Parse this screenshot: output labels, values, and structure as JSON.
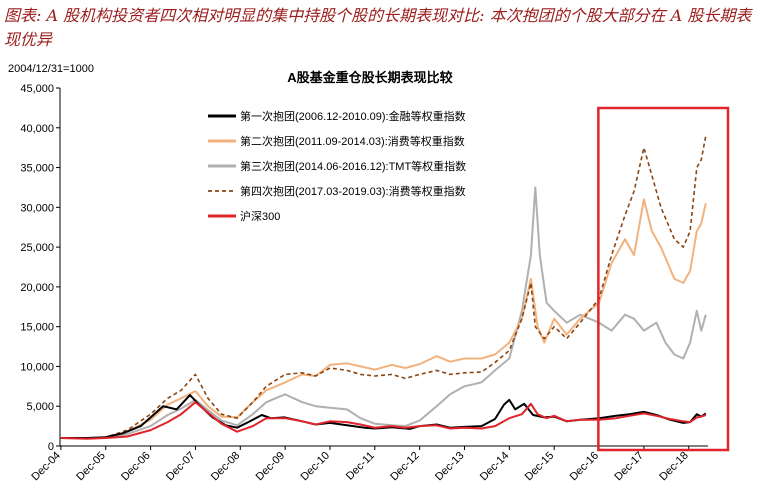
{
  "caption": "图表: A 股机构投资者四次相对明显的集中持股个股的长期表现对比: 本次抱团的个股大部分在 A 股长期表现优异",
  "chart_data": {
    "type": "line",
    "title": "A股基金重仓股长期表现比较",
    "ylabel": "2004/12/31=1000",
    "ylim": [
      0,
      45000
    ],
    "yticks": [
      "0",
      "5,000",
      "10,000",
      "15,000",
      "20,000",
      "25,000",
      "30,000",
      "35,000",
      "40,000",
      "45,000"
    ],
    "xticks": [
      "Dec-04",
      "Dec-05",
      "Dec-06",
      "Dec-07",
      "Dec-08",
      "Dec-09",
      "Dec-10",
      "Dec-11",
      "Dec-12",
      "Dec-13",
      "Dec-14",
      "Dec-15",
      "Dec-16",
      "Dec-17",
      "Dec-18"
    ],
    "xlim": [
      2004.9,
      2019.35
    ],
    "highlight_range_x": [
      2016.95,
      2019.35
    ],
    "legend_position": "top-left",
    "series": [
      {
        "name": "第一次抱团(2006.12-2010.09):金融等权重指数",
        "color": "#000000",
        "dash": false,
        "points": [
          [
            2004.92,
            1000
          ],
          [
            2005.5,
            1000
          ],
          [
            2005.92,
            1100
          ],
          [
            2006.3,
            1600
          ],
          [
            2006.7,
            2500
          ],
          [
            2006.92,
            3600
          ],
          [
            2007.2,
            5000
          ],
          [
            2007.5,
            4600
          ],
          [
            2007.8,
            6400
          ],
          [
            2008.0,
            5200
          ],
          [
            2008.3,
            3600
          ],
          [
            2008.6,
            2600
          ],
          [
            2008.85,
            2300
          ],
          [
            2009.1,
            3000
          ],
          [
            2009.4,
            3900
          ],
          [
            2009.6,
            3500
          ],
          [
            2009.9,
            3600
          ],
          [
            2010.3,
            3100
          ],
          [
            2010.6,
            2700
          ],
          [
            2010.92,
            2900
          ],
          [
            2011.3,
            2600
          ],
          [
            2011.7,
            2300
          ],
          [
            2011.92,
            2200
          ],
          [
            2012.3,
            2350
          ],
          [
            2012.7,
            2150
          ],
          [
            2012.92,
            2500
          ],
          [
            2013.3,
            2700
          ],
          [
            2013.6,
            2300
          ],
          [
            2013.92,
            2400
          ],
          [
            2014.3,
            2500
          ],
          [
            2014.6,
            3400
          ],
          [
            2014.8,
            5200
          ],
          [
            2014.92,
            5800
          ],
          [
            2015.05,
            4600
          ],
          [
            2015.25,
            5300
          ],
          [
            2015.45,
            3900
          ],
          [
            2015.7,
            3600
          ],
          [
            2015.92,
            3700
          ],
          [
            2016.2,
            3100
          ],
          [
            2016.5,
            3300
          ],
          [
            2016.92,
            3500
          ],
          [
            2017.3,
            3800
          ],
          [
            2017.6,
            4000
          ],
          [
            2017.92,
            4300
          ],
          [
            2018.2,
            3900
          ],
          [
            2018.5,
            3300
          ],
          [
            2018.8,
            2900
          ],
          [
            2018.95,
            3000
          ],
          [
            2019.1,
            4000
          ],
          [
            2019.2,
            3700
          ],
          [
            2019.3,
            4100
          ]
        ]
      },
      {
        "name": "第二次抱团(2011.09-2014.03):消费等权重指数",
        "color": "#f2b27e",
        "dash": false,
        "points": [
          [
            2004.92,
            1000
          ],
          [
            2005.5,
            950
          ],
          [
            2005.92,
            1100
          ],
          [
            2006.4,
            1800
          ],
          [
            2006.92,
            3300
          ],
          [
            2007.3,
            5200
          ],
          [
            2007.6,
            6000
          ],
          [
            2007.92,
            6900
          ],
          [
            2008.2,
            5000
          ],
          [
            2008.5,
            3700
          ],
          [
            2008.85,
            3600
          ],
          [
            2009.2,
            5500
          ],
          [
            2009.5,
            7000
          ],
          [
            2009.92,
            8000
          ],
          [
            2010.3,
            9000
          ],
          [
            2010.6,
            8800
          ],
          [
            2010.92,
            10200
          ],
          [
            2011.3,
            10400
          ],
          [
            2011.6,
            10000
          ],
          [
            2011.92,
            9600
          ],
          [
            2012.3,
            10200
          ],
          [
            2012.6,
            9800
          ],
          [
            2012.92,
            10300
          ],
          [
            2013.3,
            11300
          ],
          [
            2013.6,
            10600
          ],
          [
            2013.92,
            11000
          ],
          [
            2014.3,
            11000
          ],
          [
            2014.6,
            11500
          ],
          [
            2014.92,
            13000
          ],
          [
            2015.2,
            16000
          ],
          [
            2015.4,
            21000
          ],
          [
            2015.55,
            15000
          ],
          [
            2015.7,
            13000
          ],
          [
            2015.92,
            16000
          ],
          [
            2016.2,
            14000
          ],
          [
            2016.5,
            16000
          ],
          [
            2016.92,
            18000
          ],
          [
            2017.2,
            23000
          ],
          [
            2017.5,
            26000
          ],
          [
            2017.7,
            24000
          ],
          [
            2017.92,
            31000
          ],
          [
            2018.1,
            27000
          ],
          [
            2018.3,
            25000
          ],
          [
            2018.6,
            21000
          ],
          [
            2018.8,
            20500
          ],
          [
            2018.95,
            22000
          ],
          [
            2019.1,
            27000
          ],
          [
            2019.2,
            28000
          ],
          [
            2019.3,
            30500
          ]
        ]
      },
      {
        "name": "第三次抱团(2014.06-2016.12):TMT等权重指数",
        "color": "#b0b0b0",
        "dash": false,
        "points": [
          [
            2004.92,
            1000
          ],
          [
            2005.5,
            950
          ],
          [
            2005.92,
            1050
          ],
          [
            2006.4,
            1500
          ],
          [
            2006.92,
            2500
          ],
          [
            2007.3,
            3900
          ],
          [
            2007.6,
            4700
          ],
          [
            2007.92,
            5800
          ],
          [
            2008.2,
            4500
          ],
          [
            2008.5,
            3200
          ],
          [
            2008.85,
            2600
          ],
          [
            2009.2,
            4000
          ],
          [
            2009.5,
            5500
          ],
          [
            2009.92,
            6500
          ],
          [
            2010.3,
            5500
          ],
          [
            2010.6,
            5000
          ],
          [
            2010.92,
            4800
          ],
          [
            2011.3,
            4600
          ],
          [
            2011.6,
            3500
          ],
          [
            2011.92,
            2800
          ],
          [
            2012.3,
            2600
          ],
          [
            2012.6,
            2500
          ],
          [
            2012.92,
            3200
          ],
          [
            2013.3,
            5000
          ],
          [
            2013.6,
            6500
          ],
          [
            2013.92,
            7500
          ],
          [
            2014.3,
            8000
          ],
          [
            2014.6,
            9500
          ],
          [
            2014.92,
            11000
          ],
          [
            2015.2,
            17000
          ],
          [
            2015.4,
            24000
          ],
          [
            2015.5,
            32500
          ],
          [
            2015.6,
            24000
          ],
          [
            2015.75,
            18000
          ],
          [
            2015.92,
            17000
          ],
          [
            2016.2,
            15500
          ],
          [
            2016.5,
            16500
          ],
          [
            2016.92,
            15500
          ],
          [
            2017.2,
            14500
          ],
          [
            2017.5,
            16500
          ],
          [
            2017.7,
            16000
          ],
          [
            2017.92,
            14500
          ],
          [
            2018.2,
            15500
          ],
          [
            2018.4,
            13000
          ],
          [
            2018.6,
            11500
          ],
          [
            2018.8,
            11000
          ],
          [
            2018.95,
            13000
          ],
          [
            2019.1,
            17000
          ],
          [
            2019.2,
            14500
          ],
          [
            2019.3,
            16500
          ]
        ]
      },
      {
        "name": "第四次抱团(2017.03-2019.03):消费等权重指数",
        "color": "#8b4513",
        "dash": true,
        "points": [
          [
            2004.92,
            1000
          ],
          [
            2005.5,
            950
          ],
          [
            2005.92,
            1100
          ],
          [
            2006.4,
            2000
          ],
          [
            2006.92,
            4000
          ],
          [
            2007.3,
            6000
          ],
          [
            2007.6,
            7000
          ],
          [
            2007.92,
            9000
          ],
          [
            2008.2,
            6000
          ],
          [
            2008.5,
            4000
          ],
          [
            2008.85,
            3500
          ],
          [
            2009.2,
            5500
          ],
          [
            2009.5,
            7500
          ],
          [
            2009.92,
            9000
          ],
          [
            2010.3,
            9200
          ],
          [
            2010.6,
            8800
          ],
          [
            2010.92,
            9800
          ],
          [
            2011.3,
            9500
          ],
          [
            2011.6,
            9000
          ],
          [
            2011.92,
            8800
          ],
          [
            2012.3,
            9000
          ],
          [
            2012.6,
            8500
          ],
          [
            2012.92,
            9000
          ],
          [
            2013.3,
            9500
          ],
          [
            2013.6,
            9000
          ],
          [
            2013.92,
            9200
          ],
          [
            2014.3,
            9300
          ],
          [
            2014.6,
            10500
          ],
          [
            2014.92,
            12000
          ],
          [
            2015.2,
            16000
          ],
          [
            2015.4,
            20500
          ],
          [
            2015.5,
            15000
          ],
          [
            2015.7,
            13500
          ],
          [
            2015.92,
            15000
          ],
          [
            2016.2,
            13500
          ],
          [
            2016.5,
            15500
          ],
          [
            2016.92,
            18500
          ],
          [
            2017.2,
            24000
          ],
          [
            2017.5,
            29000
          ],
          [
            2017.7,
            32000
          ],
          [
            2017.92,
            37500
          ],
          [
            2018.1,
            34000
          ],
          [
            2018.3,
            30000
          ],
          [
            2018.6,
            26000
          ],
          [
            2018.8,
            25000
          ],
          [
            2018.95,
            27000
          ],
          [
            2019.1,
            35000
          ],
          [
            2019.2,
            36000
          ],
          [
            2019.3,
            39000
          ]
        ]
      },
      {
        "name": "沪深300",
        "color": "#e0242b",
        "dash": false,
        "points": [
          [
            2004.92,
            1000
          ],
          [
            2005.5,
            900
          ],
          [
            2005.92,
            1000
          ],
          [
            2006.4,
            1200
          ],
          [
            2006.92,
            2000
          ],
          [
            2007.3,
            3000
          ],
          [
            2007.6,
            4000
          ],
          [
            2007.92,
            5500
          ],
          [
            2008.2,
            4200
          ],
          [
            2008.5,
            2800
          ],
          [
            2008.85,
            1800
          ],
          [
            2009.2,
            2500
          ],
          [
            2009.5,
            3500
          ],
          [
            2009.92,
            3500
          ],
          [
            2010.3,
            3100
          ],
          [
            2010.6,
            2700
          ],
          [
            2010.92,
            3100
          ],
          [
            2011.3,
            3000
          ],
          [
            2011.6,
            2700
          ],
          [
            2011.92,
            2300
          ],
          [
            2012.3,
            2500
          ],
          [
            2012.6,
            2300
          ],
          [
            2012.92,
            2500
          ],
          [
            2013.3,
            2600
          ],
          [
            2013.6,
            2200
          ],
          [
            2013.92,
            2300
          ],
          [
            2014.3,
            2200
          ],
          [
            2014.6,
            2500
          ],
          [
            2014.92,
            3500
          ],
          [
            2015.2,
            4000
          ],
          [
            2015.4,
            5300
          ],
          [
            2015.55,
            4000
          ],
          [
            2015.75,
            3500
          ],
          [
            2015.92,
            3800
          ],
          [
            2016.2,
            3100
          ],
          [
            2016.5,
            3300
          ],
          [
            2016.92,
            3300
          ],
          [
            2017.3,
            3500
          ],
          [
            2017.6,
            3800
          ],
          [
            2017.92,
            4100
          ],
          [
            2018.2,
            3800
          ],
          [
            2018.5,
            3400
          ],
          [
            2018.8,
            3100
          ],
          [
            2018.95,
            3000
          ],
          [
            2019.1,
            3600
          ],
          [
            2019.2,
            3700
          ],
          [
            2019.3,
            3900
          ]
        ]
      }
    ]
  }
}
